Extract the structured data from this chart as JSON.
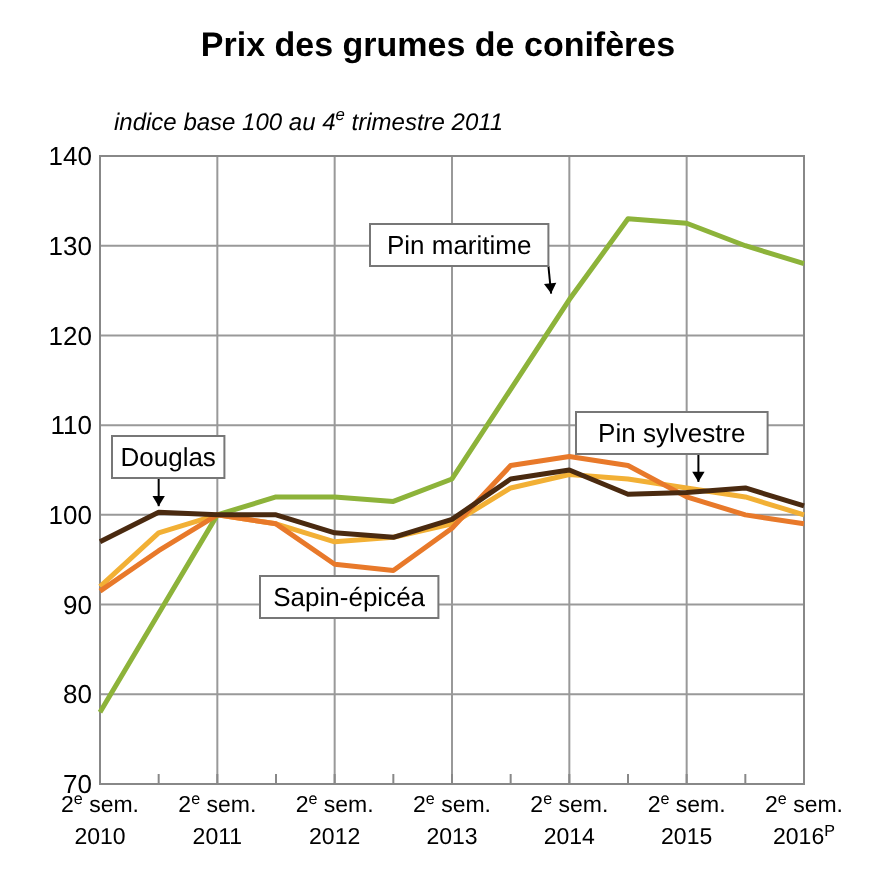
{
  "chart_data": {
    "type": "line",
    "title": "Prix des grumes de conifères",
    "subtitle": "indice base 100 au 4$^{e}$ trimestre 2011",
    "categories": [
      "2$^{e}$ sem.\n2010",
      null,
      "2$^{e}$ sem.\n2011",
      null,
      "2$^{e}$ sem.\n2012",
      null,
      "2$^{e}$ sem.\n2013",
      null,
      "2$^{e}$ sem.\n2014",
      null,
      "2$^{e}$ sem.\n2015",
      null,
      "2$^{e}$ sem.\n2016$^{P}$"
    ],
    "series": [
      {
        "name": "Pin maritime",
        "color": "#8db33a",
        "values": [
          78,
          89,
          100,
          102,
          102,
          101.5,
          104,
          114,
          124,
          133,
          132.5,
          130,
          128
        ]
      },
      {
        "name": "Pin sylvestre",
        "color": "#f2b035",
        "values": [
          92,
          98,
          100,
          99,
          97,
          97.5,
          99,
          103,
          104.5,
          104,
          103,
          102,
          100
        ]
      },
      {
        "name": "Sapin-épicéa",
        "color": "#e8792a",
        "values": [
          91.5,
          96,
          100,
          99,
          94.5,
          93.8,
          98.5,
          105.5,
          106.5,
          105.5,
          102,
          100,
          99
        ]
      },
      {
        "name": "Douglas",
        "color": "#4a2a10",
        "values": [
          97,
          100.3,
          100,
          100,
          98,
          97.5,
          99.5,
          104,
          105,
          102.3,
          102.5,
          103,
          101
        ]
      }
    ],
    "ylim": [
      70,
      140
    ],
    "yticks": [
      70,
      80,
      90,
      100,
      110,
      120,
      130,
      140
    ],
    "grid": true,
    "line_style": "solid",
    "marker": "none"
  }
}
